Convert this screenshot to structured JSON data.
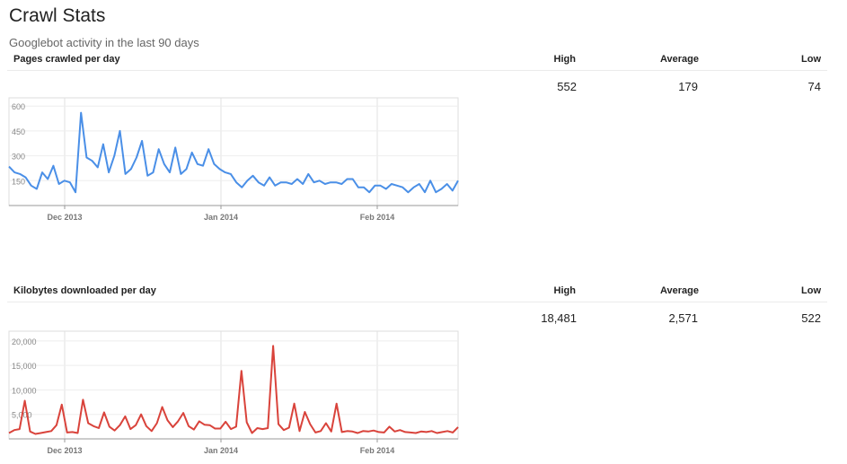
{
  "header": {
    "title": "Crawl Stats",
    "subtitle": "Googlebot activity in the last 90 days"
  },
  "columns": {
    "high": "High",
    "average": "Average",
    "low": "Low"
  },
  "sections": [
    {
      "name": "Pages crawled per day",
      "high": "552",
      "average": "179",
      "low": "74"
    },
    {
      "name": "Kilobytes downloaded per day",
      "high": "18,481",
      "average": "2,571",
      "low": "522"
    }
  ],
  "colors": {
    "pages_line": "#4a8fe7",
    "kb_line": "#d9433b",
    "grid": "#e3e3e3",
    "axis": "#888888"
  },
  "chart_data": [
    {
      "type": "line",
      "title": "Pages crawled per day",
      "x_tick_labels": [
        "Dec 2013",
        "Jan 2014",
        "Feb 2014"
      ],
      "y_tick_labels": [
        "600",
        "450",
        "300",
        "150"
      ],
      "ylim": [
        0,
        650
      ],
      "grid": true,
      "series": [
        {
          "values": [
            235,
            200,
            190,
            170,
            120,
            100,
            200,
            160,
            240,
            130,
            150,
            140,
            80,
            560,
            290,
            270,
            230,
            370,
            200,
            300,
            450,
            190,
            220,
            290,
            390,
            180,
            200,
            340,
            250,
            200,
            350,
            190,
            220,
            320,
            250,
            240,
            340,
            250,
            220,
            200,
            190,
            140,
            110,
            150,
            180,
            140,
            120,
            170,
            120,
            140,
            140,
            130,
            160,
            130,
            190,
            140,
            150,
            130,
            140,
            140,
            130,
            160,
            160,
            110,
            110,
            80,
            120,
            120,
            100,
            130,
            120,
            110,
            80,
            110,
            130,
            80,
            150,
            80,
            100,
            130,
            90,
            150
          ]
        }
      ]
    },
    {
      "type": "line",
      "title": "Kilobytes downloaded per day",
      "x_tick_labels": [
        "Dec 2013",
        "Jan 2014",
        "Feb 2014"
      ],
      "y_tick_labels": [
        "20,000",
        "15,000",
        "10,000",
        "5,000"
      ],
      "ylim": [
        0,
        22000
      ],
      "grid": true,
      "series": [
        {
          "values": [
            1200,
            1800,
            2000,
            7800,
            1500,
            1000,
            1200,
            1400,
            1600,
            2800,
            7000,
            1300,
            1400,
            1200,
            8000,
            3200,
            2600,
            2200,
            5400,
            2500,
            1700,
            2800,
            4600,
            2000,
            2800,
            5000,
            2600,
            1600,
            3200,
            6500,
            3800,
            2400,
            3600,
            5300,
            2600,
            1900,
            3600,
            2900,
            2800,
            2100,
            2100,
            3500,
            2000,
            2500,
            13900,
            3400,
            1200,
            2200,
            2000,
            2200,
            19000,
            3000,
            1800,
            2300,
            7200,
            1600,
            5500,
            3000,
            1300,
            1600,
            3200,
            1500,
            7200,
            1400,
            1600,
            1500,
            1200,
            1600,
            1500,
            1700,
            1400,
            1300,
            2500,
            1500,
            1800,
            1400,
            1300,
            1200,
            1500,
            1400,
            1600,
            1200,
            1400,
            1600,
            1300,
            2400
          ]
        }
      ]
    }
  ]
}
